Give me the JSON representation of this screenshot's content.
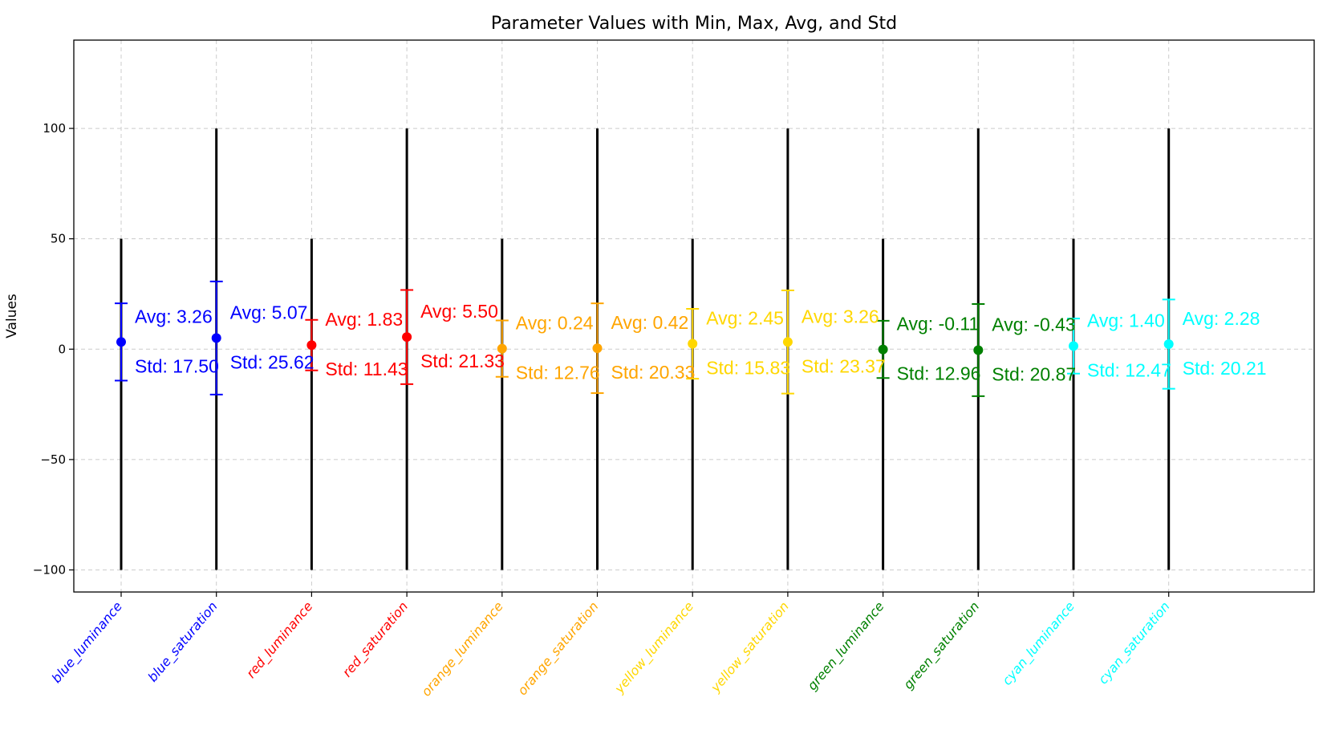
{
  "chart_data": {
    "type": "errorbar",
    "title": "Parameter Values with Min, Max, Avg, and Std",
    "xlabel": "",
    "ylabel": "Values",
    "ylim": [
      -110,
      140
    ],
    "yticks": [
      100,
      50,
      0,
      -50,
      -100
    ],
    "ytick_labels": [
      "100",
      "50",
      "0",
      "−50",
      "−100"
    ],
    "grid": true,
    "categories": [
      "blue_luminance",
      "blue_saturation",
      "red_luminance",
      "red_saturation",
      "orange_luminance",
      "orange_saturation",
      "yellow_luminance",
      "yellow_saturation",
      "green_luminance",
      "green_saturation",
      "cyan_luminance",
      "cyan_saturation"
    ],
    "colors": [
      "#0000ff",
      "#0000ff",
      "#ff0000",
      "#ff0000",
      "#ffa500",
      "#ffa500",
      "#ffd700",
      "#ffd700",
      "#008000",
      "#008000",
      "#00ffff",
      "#00ffff"
    ],
    "min": [
      -100,
      -100,
      -100,
      -100,
      -100,
      -100,
      -100,
      -100,
      -100,
      -100,
      -100,
      -100
    ],
    "max": [
      50,
      100,
      50,
      100,
      50,
      100,
      50,
      100,
      50,
      100,
      50,
      100
    ],
    "avg": [
      3.26,
      5.07,
      1.83,
      5.5,
      0.24,
      0.42,
      2.45,
      3.26,
      -0.11,
      -0.43,
      1.4,
      2.28
    ],
    "std": [
      17.5,
      25.62,
      11.43,
      21.33,
      12.76,
      20.33,
      15.83,
      23.37,
      12.96,
      20.87,
      12.47,
      20.21
    ],
    "avg_labels": [
      "Avg: 3.26",
      "Avg: 5.07",
      "Avg: 1.83",
      "Avg: 5.50",
      "Avg: 0.24",
      "Avg: 0.42",
      "Avg: 2.45",
      "Avg: 3.26",
      "Avg: -0.11",
      "Avg: -0.43",
      "Avg: 1.40",
      "Avg: 2.28"
    ],
    "std_labels": [
      "Std: 17.50",
      "Std: 25.62",
      "Std: 11.43",
      "Std: 21.33",
      "Std: 12.76",
      "Std: 20.33",
      "Std: 15.83",
      "Std: 23.37",
      "Std: 12.96",
      "Std: 20.87",
      "Std: 12.47",
      "Std: 20.21"
    ],
    "range_line_color": "#000000",
    "grid_color": "#cccccc"
  }
}
